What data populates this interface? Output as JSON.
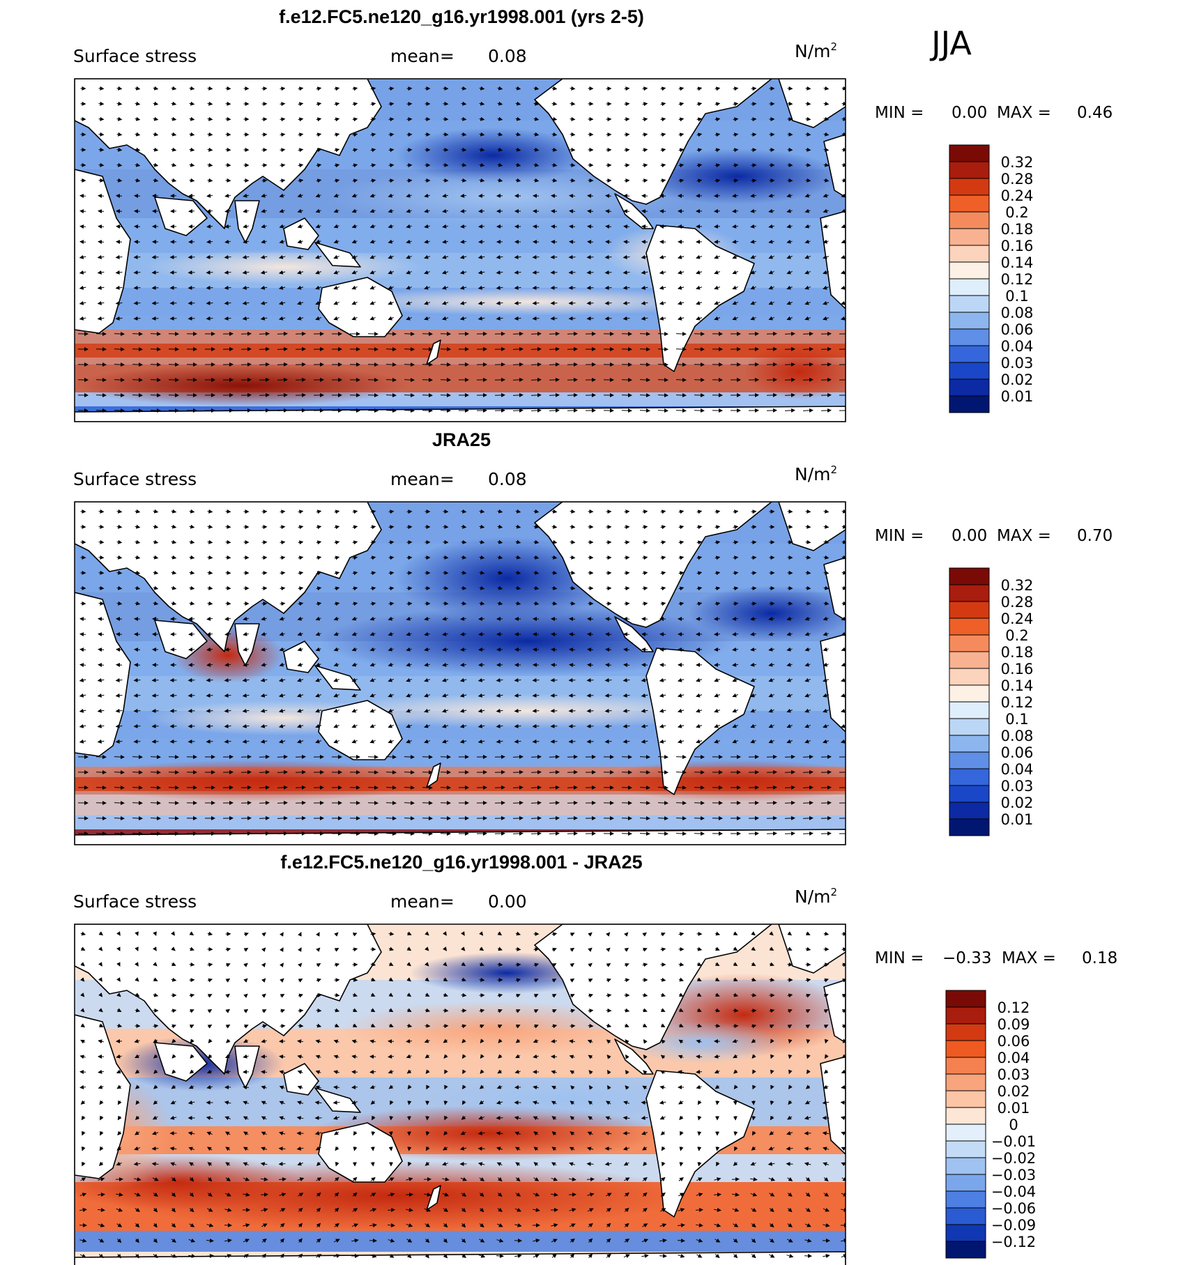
{
  "season": "JJA",
  "panels": [
    {
      "id": "model",
      "title": "f.e12.FC5.ne120_g16.yr1998.001 (yrs 2-5)",
      "variable": "Surface stress",
      "mean_label": "mean=",
      "mean_value": "0.08",
      "units": "N/m",
      "units_sup": "2",
      "min_label": "MIN =",
      "min_value": "0.00",
      "max_label": "MAX =",
      "max_value": "0.46",
      "colorbar_labels": [
        "0.32",
        "0.28",
        "0.24",
        "0.2",
        "0.18",
        "0.16",
        "0.14",
        "0.12",
        "0.1",
        "0.08",
        "0.06",
        "0.04",
        "0.03",
        "0.02",
        "0.01"
      ],
      "colorbar_colors": [
        "#7a0a06",
        "#a81d0d",
        "#d33a12",
        "#ee6028",
        "#f58b5c",
        "#f9b291",
        "#fcd3bc",
        "#fdf0e4",
        "#dfeefb",
        "#bcd6f5",
        "#8db6ee",
        "#5f8fe6",
        "#3566db",
        "#1a47c7",
        "#0b2aa3",
        "#001670"
      ]
    },
    {
      "id": "obs",
      "title": "JRA25",
      "variable": "Surface stress",
      "mean_label": "mean=",
      "mean_value": "0.08",
      "units": "N/m",
      "units_sup": "2",
      "min_label": "MIN =",
      "min_value": "0.00",
      "max_label": "MAX =",
      "max_value": "0.70",
      "colorbar_labels": [
        "0.32",
        "0.28",
        "0.24",
        "0.2",
        "0.18",
        "0.16",
        "0.14",
        "0.12",
        "0.1",
        "0.08",
        "0.06",
        "0.04",
        "0.03",
        "0.02",
        "0.01"
      ],
      "colorbar_colors": [
        "#7a0a06",
        "#a81d0d",
        "#d33a12",
        "#ee6028",
        "#f58b5c",
        "#f9b291",
        "#fcd3bc",
        "#fdf0e4",
        "#dfeefb",
        "#bcd6f5",
        "#8db6ee",
        "#5f8fe6",
        "#3566db",
        "#1a47c7",
        "#0b2aa3",
        "#001670"
      ]
    },
    {
      "id": "diff",
      "title": "f.e12.FC5.ne120_g16.yr1998.001 - JRA25",
      "variable": "Surface stress",
      "mean_label": "mean=",
      "mean_value": "0.00",
      "units": "N/m",
      "units_sup": "2",
      "min_label": "MIN =",
      "min_value": "−0.33",
      "max_label": "MAX =",
      "max_value": "0.18",
      "colorbar_labels": [
        "0.12",
        "0.09",
        "0.06",
        "0.04",
        "0.03",
        "0.02",
        "0.01",
        "0",
        "−0.01",
        "−0.02",
        "−0.03",
        "−0.04",
        "−0.06",
        "−0.09",
        "−0.12"
      ],
      "colorbar_colors": [
        "#7a0a06",
        "#a81d0d",
        "#d33a12",
        "#ee5a22",
        "#f4814f",
        "#f8a47c",
        "#fbc5a6",
        "#fde6d6",
        "#e3effb",
        "#c4dbf6",
        "#9fc2f0",
        "#7aa6eb",
        "#4d80e2",
        "#2a5bd3",
        "#1038b3",
        "#001670"
      ]
    }
  ]
}
